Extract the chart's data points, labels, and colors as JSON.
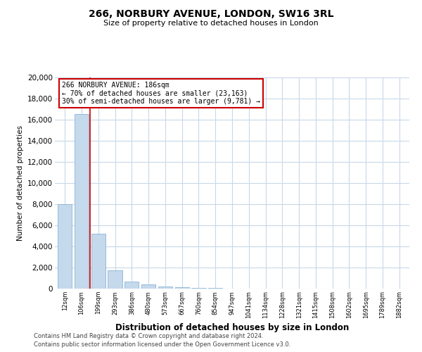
{
  "title": "266, NORBURY AVENUE, LONDON, SW16 3RL",
  "subtitle": "Size of property relative to detached houses in London",
  "xlabel": "Distribution of detached houses by size in London",
  "ylabel": "Number of detached properties",
  "property_label": "266 NORBURY AVENUE: 186sqm",
  "annotation_line1": "← 70% of detached houses are smaller (23,163)",
  "annotation_line2": "30% of semi-detached houses are larger (9,781) →",
  "footer_line1": "Contains HM Land Registry data © Crown copyright and database right 2024.",
  "footer_line2": "Contains public sector information licensed under the Open Government Licence v3.0.",
  "bar_color": "#c5d9ec",
  "bar_edge_color": "#8ab4d4",
  "marker_color": "#cc0000",
  "box_edge_color": "#cc0000",
  "background_color": "#ffffff",
  "grid_color": "#c8d8e8",
  "categories": [
    "12sqm",
    "106sqm",
    "199sqm",
    "293sqm",
    "386sqm",
    "480sqm",
    "573sqm",
    "667sqm",
    "760sqm",
    "854sqm",
    "947sqm",
    "1041sqm",
    "1134sqm",
    "1228sqm",
    "1321sqm",
    "1415sqm",
    "1508sqm",
    "1602sqm",
    "1695sqm",
    "1789sqm",
    "1882sqm"
  ],
  "values": [
    8000,
    16500,
    5200,
    1750,
    700,
    370,
    230,
    160,
    100,
    60,
    0,
    0,
    0,
    0,
    0,
    0,
    0,
    0,
    0,
    0,
    0
  ],
  "ylim": [
    0,
    20000
  ],
  "yticks": [
    0,
    2000,
    4000,
    6000,
    8000,
    10000,
    12000,
    14000,
    16000,
    18000,
    20000
  ],
  "red_line_index": 1.5
}
